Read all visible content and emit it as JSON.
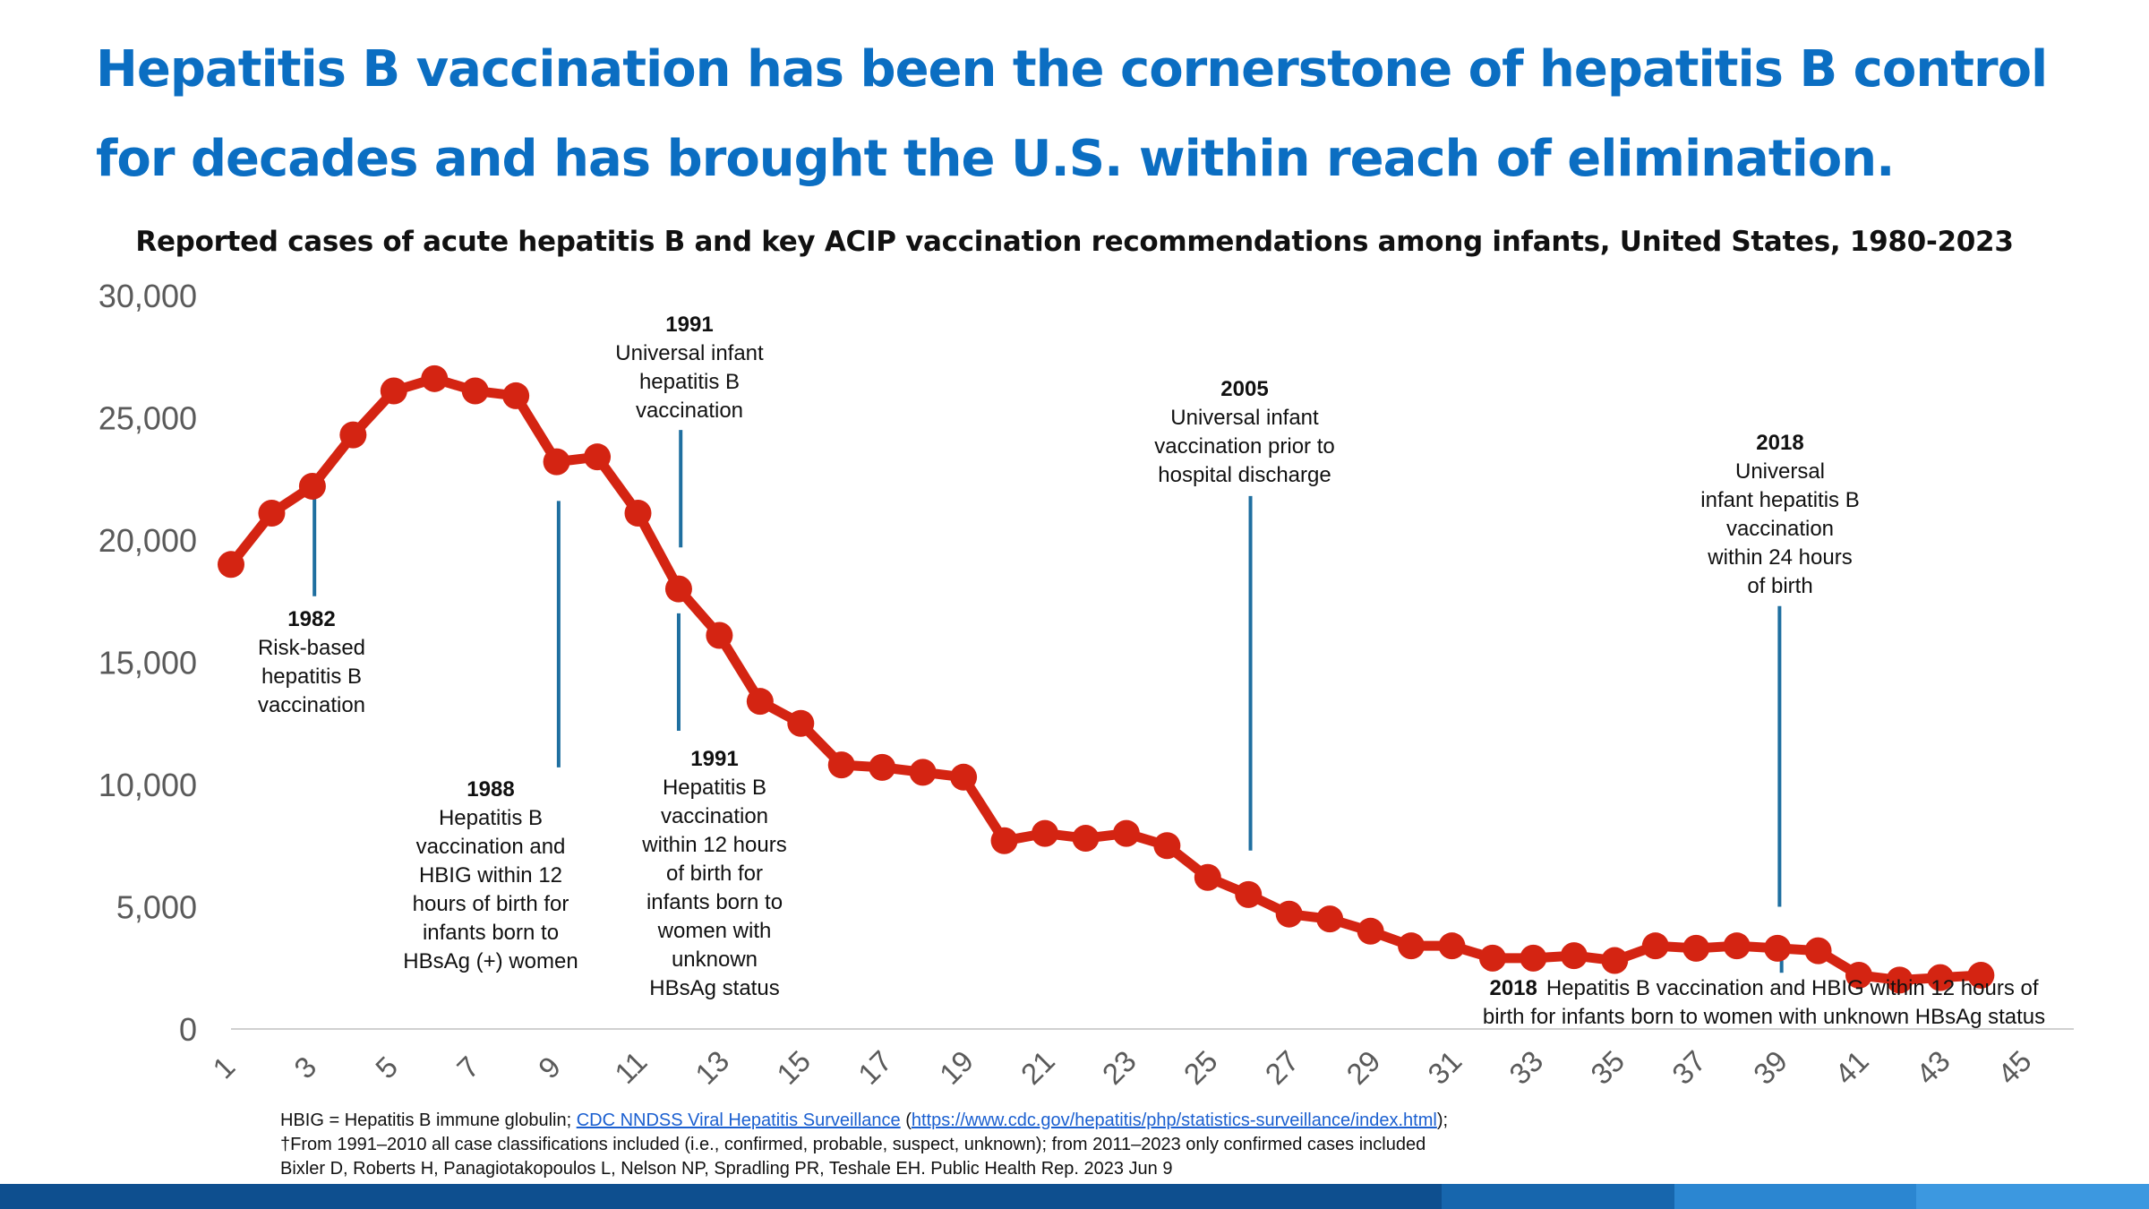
{
  "slide": {
    "title_line1": "Hepatitis B vaccination has been the cornerstone of hepatitis B control",
    "title_line2": "for decades and has brought the U.S. within reach of elimination."
  },
  "chart_data": {
    "type": "line",
    "title": "Reported cases of acute hepatitis B and key ACIP vaccination recommendations among infants, United States, 1980-2023",
    "xlabel": "",
    "ylabel": "",
    "ylim": [
      0,
      30000
    ],
    "xlim": [
      1,
      45
    ],
    "y_ticks": [
      "0",
      "5,000",
      "10,000",
      "15,000",
      "20,000",
      "25,000",
      "30,000"
    ],
    "x_ticks": [
      "1",
      "3",
      "5",
      "7",
      "9",
      "11",
      "13",
      "15",
      "17",
      "19",
      "21",
      "23",
      "25",
      "27",
      "29",
      "31",
      "33",
      "35",
      "37",
      "39",
      "41",
      "43",
      "45"
    ],
    "series": [
      {
        "name": "Reported cases of acute hepatitis B",
        "color": "#d42412",
        "x": [
          1,
          2,
          3,
          4,
          5,
          6,
          7,
          8,
          9,
          10,
          11,
          12,
          13,
          14,
          15,
          16,
          17,
          18,
          19,
          20,
          21,
          22,
          23,
          24,
          25,
          26,
          27,
          28,
          29,
          30,
          31,
          32,
          33,
          34,
          35,
          36,
          37,
          38,
          39,
          40,
          41,
          42,
          43,
          44
        ],
        "values": [
          19000,
          21100,
          22200,
          24300,
          26100,
          26600,
          26100,
          25900,
          23200,
          23400,
          21100,
          18000,
          16100,
          13400,
          12500,
          10800,
          10700,
          10500,
          10300,
          7700,
          8000,
          7800,
          8000,
          7500,
          6200,
          5500,
          4700,
          4500,
          4000,
          3400,
          3400,
          2900,
          2900,
          3000,
          2800,
          3400,
          3300,
          3400,
          3300,
          3200,
          2200,
          2000,
          2100,
          2200
        ]
      }
    ],
    "annotations": [
      {
        "year": "1982",
        "text": [
          "Risk-based",
          "hepatitis B",
          "vaccination"
        ],
        "x": 3.1
      },
      {
        "year": "1988",
        "text": [
          "Hepatitis B",
          "vaccination and",
          "HBIG within 12",
          "hours of birth for",
          "infants born to",
          "HBsAg (+) women"
        ],
        "x": 9.1
      },
      {
        "year": "1991",
        "text": [
          "Universal infant",
          "hepatitis B",
          "vaccination"
        ],
        "x": 12.1
      },
      {
        "year": "1991",
        "text": [
          "Hepatitis B",
          "vaccination",
          "within 12 hours",
          "of birth for",
          "infants born to",
          "women with",
          "unknown",
          "HBsAg status"
        ],
        "x": 12.0
      },
      {
        "year": "2005",
        "text": [
          "Universal infant",
          "vaccination prior to",
          "hospital discharge"
        ],
        "x": 26.1
      },
      {
        "year": "2018",
        "text": [
          "Universal",
          "infant hepatitis B",
          "vaccination",
          "within 24 hours",
          "of birth"
        ],
        "x": 39.0
      },
      {
        "year": "2018",
        "text": [
          "Hepatitis B vaccination and HBIG within 12 hours of",
          "birth for infants born to women with unknown HBsAg status"
        ],
        "x": 39.1
      }
    ],
    "colors": {
      "line": "#d42412",
      "marker": "#d42412",
      "annotation_line": "#1f6fa0",
      "axis": "#d0d0d0",
      "tick_text": "#5a5a5a"
    }
  },
  "footnotes": {
    "line1_prefix": "HBIG = Hepatitis B immune globulin; ",
    "line1_link1": "CDC NNDSS Viral Hepatitis Surveillance",
    "line1_mid": " (",
    "line1_link2": "https://www.cdc.gov/hepatitis/php/statistics-surveillance/index.html",
    "line1_suffix": ");",
    "line2": "†From 1991–2010 all case classifications included (i.e., confirmed, probable, suspect, unknown); from 2011–2023 only confirmed cases included",
    "line3": "Bixler D, Roberts H, Panagiotakopoulos L, Nelson NP, Spradling PR, Teshale EH. Public Health Rep. 2023 Jun 9"
  },
  "theme": {
    "title_color": "#0b6ec2",
    "band_colors": [
      "#0e4f8f",
      "#1766ad",
      "#2b86d1",
      "#3c98e0"
    ]
  }
}
